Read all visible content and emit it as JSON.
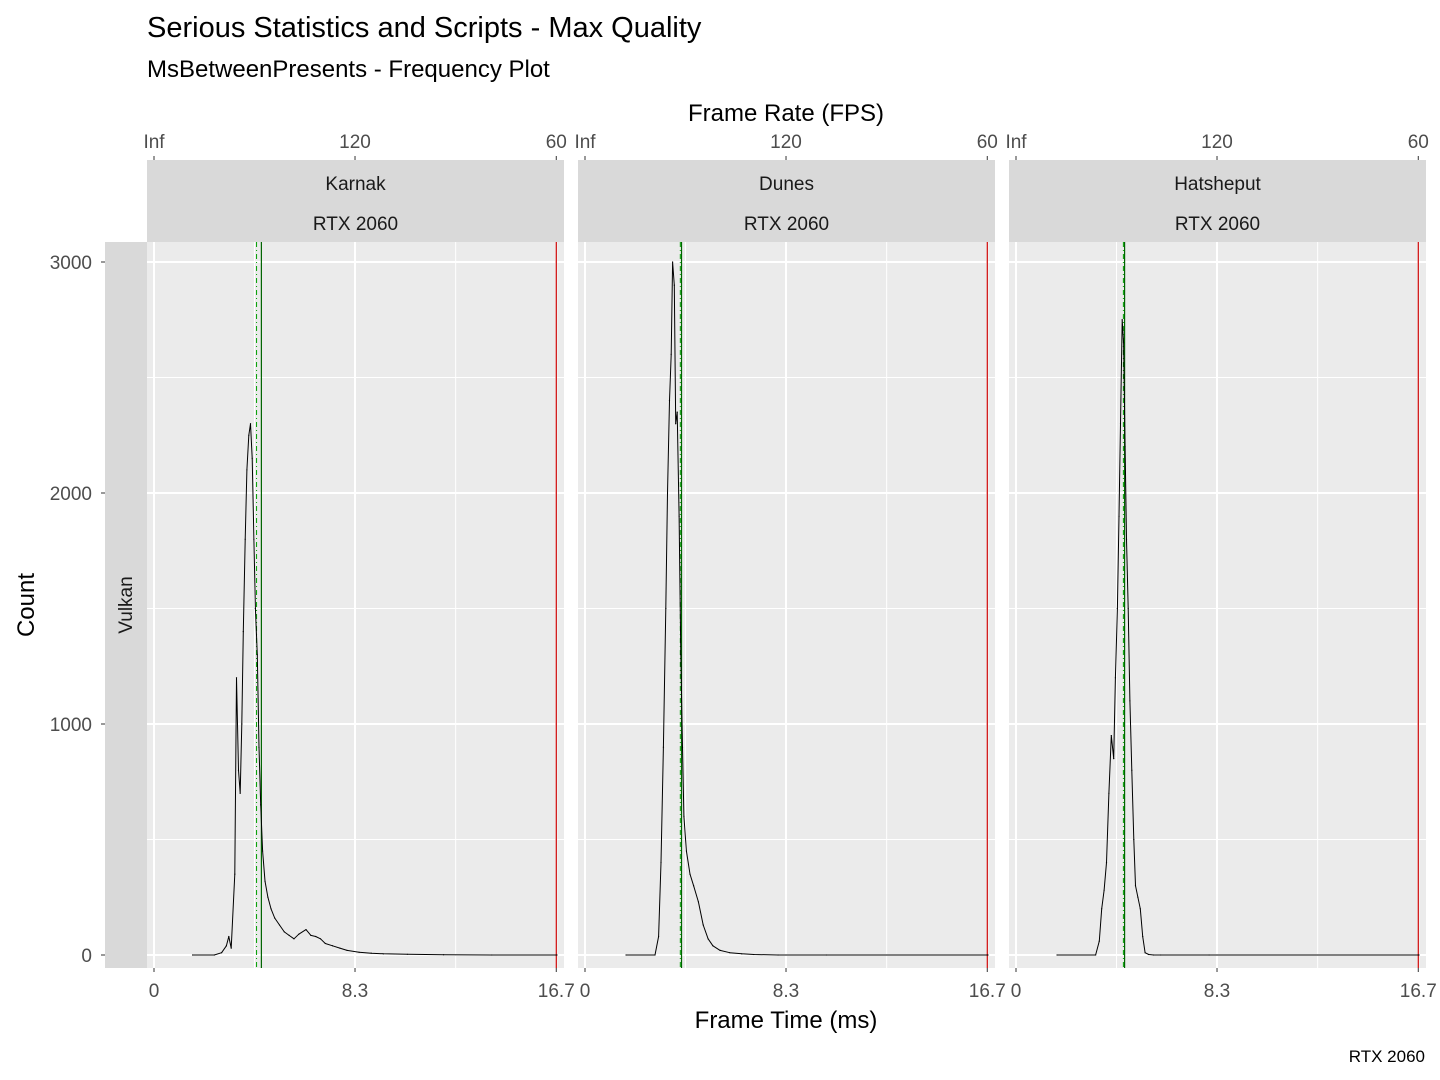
{
  "chart_data": {
    "type": "line",
    "title": "Serious Statistics and Scripts - Max Quality",
    "subtitle": "MsBetweenPresents - Frequency Plot",
    "xlabel": "Frame Time (ms)",
    "x2label": "Frame Rate (FPS)",
    "ylabel": "Count",
    "caption": "RTX 2060",
    "row_label": "Vulkan",
    "xlim": [
      0,
      16.7
    ],
    "ylim": [
      0,
      3000
    ],
    "x_ticks": [
      "0",
      "8.3",
      "16.7"
    ],
    "x_tick_values": [
      0,
      8.33,
      16.67
    ],
    "x2_ticks": [
      "Inf",
      "120",
      "60"
    ],
    "y_ticks": [
      "0",
      "1000",
      "2000",
      "3000"
    ],
    "y_tick_values": [
      0,
      1000,
      2000,
      3000
    ],
    "grid": true,
    "line_colors": {
      "series": "#000000",
      "mean": "#006400",
      "median": "#00a000",
      "limit": "#cc0000"
    },
    "panels": [
      {
        "name": "Karnak",
        "gpu": "RTX 2060",
        "mean_ms": 4.45,
        "median_ms": 4.25,
        "limit_ms": 16.67,
        "series": {
          "x": [
            1.6,
            2.5,
            2.8,
            3.0,
            3.1,
            3.2,
            3.35,
            3.42,
            3.5,
            3.57,
            3.64,
            3.7,
            3.78,
            3.85,
            3.93,
            4.0,
            4.07,
            4.14,
            4.2,
            4.28,
            4.35,
            4.42,
            4.5,
            4.6,
            4.72,
            4.85,
            5.0,
            5.2,
            5.4,
            5.6,
            5.8,
            6.0,
            6.3,
            6.5,
            6.7,
            6.9,
            7.1,
            7.4,
            7.7,
            8.0,
            8.5,
            9.0,
            9.5,
            10.5,
            12.0,
            14.0,
            16.7
          ],
          "values": [
            0,
            0,
            10,
            40,
            80,
            30,
            350,
            1200,
            800,
            700,
            1000,
            1400,
            1800,
            2100,
            2250,
            2300,
            2150,
            1800,
            1500,
            1300,
            900,
            650,
            450,
            320,
            250,
            200,
            160,
            130,
            100,
            85,
            70,
            90,
            110,
            85,
            80,
            70,
            50,
            40,
            30,
            20,
            12,
            8,
            5,
            3,
            1,
            0,
            0
          ]
        }
      },
      {
        "name": "Dunes",
        "gpu": "RTX 2060",
        "mean_ms": 4.0,
        "median_ms": 3.95,
        "limit_ms": 16.67,
        "series": {
          "x": [
            1.7,
            2.9,
            3.05,
            3.15,
            3.25,
            3.35,
            3.42,
            3.5,
            3.57,
            3.63,
            3.7,
            3.76,
            3.82,
            3.9,
            3.97,
            4.04,
            4.1,
            4.2,
            4.35,
            4.5,
            4.7,
            4.9,
            5.1,
            5.3,
            5.6,
            6.0,
            6.5,
            7.0,
            8.0,
            10.0,
            16.7
          ],
          "values": [
            0,
            0,
            80,
            400,
            900,
            1500,
            2000,
            2400,
            2600,
            3000,
            2900,
            2300,
            2350,
            1900,
            1300,
            900,
            600,
            450,
            350,
            300,
            230,
            130,
            70,
            40,
            20,
            10,
            5,
            2,
            0,
            0,
            0
          ]
        }
      },
      {
        "name": "Hatsheput",
        "gpu": "RTX 2060",
        "mean_ms": 4.5,
        "median_ms": 4.45,
        "limit_ms": 16.67,
        "series": {
          "x": [
            1.7,
            3.3,
            3.45,
            3.55,
            3.65,
            3.75,
            3.85,
            3.95,
            4.05,
            4.12,
            4.2,
            4.27,
            4.33,
            4.4,
            4.46,
            4.52,
            4.58,
            4.65,
            4.72,
            4.8,
            4.88,
            4.95,
            5.05,
            5.15,
            5.25,
            5.35,
            5.5,
            5.7,
            6.0,
            8.0,
            16.7
          ],
          "values": [
            0,
            0,
            60,
            200,
            280,
            400,
            700,
            950,
            850,
            1200,
            1500,
            1900,
            2300,
            2750,
            2650,
            2200,
            1800,
            1500,
            1100,
            800,
            500,
            300,
            250,
            200,
            80,
            10,
            2,
            0,
            0,
            0,
            0
          ]
        }
      }
    ]
  }
}
